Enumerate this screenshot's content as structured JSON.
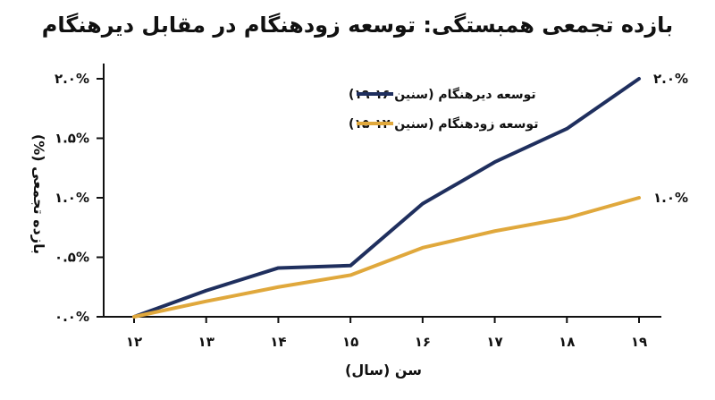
{
  "chart_data": {
    "type": "line",
    "title": "بازده تجمعی همبستگی: توسعه زودهنگام در مقابل دیرهنگام",
    "xlabel": "سن (سال)",
    "ylabel": "بازده تجمعی (%)",
    "x": [
      "۱۲",
      "۱۳",
      "۱۴",
      "۱۵",
      "۱۶",
      "۱۷",
      "۱۸",
      "۱۹"
    ],
    "x_values": [
      12,
      13,
      14,
      15,
      16,
      17,
      18,
      19
    ],
    "y_ticks": [
      "۰.۰%",
      "۰.۵%",
      "۱.۰%",
      "۱.۵%",
      "۲.۰%"
    ],
    "y_tick_values": [
      0,
      0.5,
      1.0,
      1.5,
      2.0
    ],
    "ylim": [
      0,
      2.0
    ],
    "xlim": [
      12,
      19
    ],
    "grid": false,
    "legend_position": "top-left",
    "series": [
      {
        "name": "توسعه دیرهنگام (سنین ۱۶-۱۹)",
        "color": "#1f2f5e",
        "values": [
          0.0,
          0.22,
          0.41,
          0.43,
          0.95,
          1.3,
          1.58,
          2.0
        ],
        "end_label": "۲.۰%"
      },
      {
        "name": "توسعه زودهنگام (سنین ۱۲-۱۵)",
        "color": "#e0a83c",
        "values": [
          0.0,
          0.13,
          0.25,
          0.35,
          0.58,
          0.72,
          0.83,
          1.0
        ],
        "end_label": "۱.۰%"
      }
    ]
  }
}
